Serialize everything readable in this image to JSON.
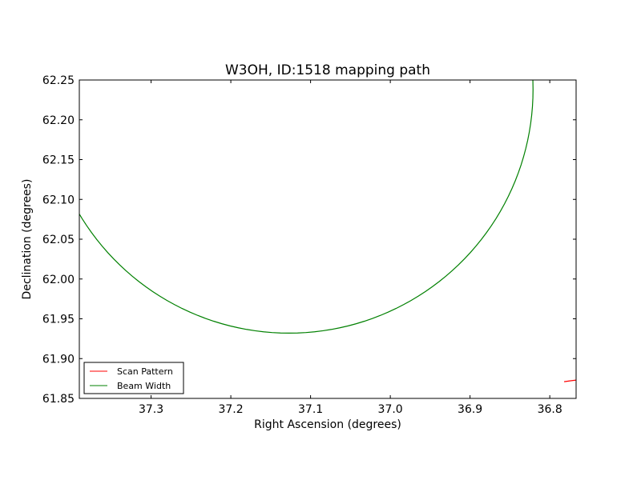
{
  "chart_data": {
    "type": "line",
    "title": "W3OH, ID:1518 mapping path",
    "xlabel": "Right Ascension (degrees)",
    "ylabel": "Declination (degrees)",
    "xlim": [
      37.39,
      36.767
    ],
    "ylim": [
      61.85,
      62.25
    ],
    "x_inverted": true,
    "xticks": [
      "37.3",
      "37.2",
      "37.1",
      "37.0",
      "36.9",
      "36.8"
    ],
    "xtick_values": [
      37.3,
      37.2,
      37.1,
      37.0,
      36.9,
      36.8
    ],
    "yticks": [
      "61.85",
      "61.90",
      "61.95",
      "62.00",
      "62.05",
      "62.10",
      "62.15",
      "62.20",
      "62.25"
    ],
    "ytick_values": [
      61.85,
      61.9,
      61.95,
      62.0,
      62.05,
      62.1,
      62.15,
      62.2,
      62.25
    ],
    "grid": false,
    "legend_position": "bottom-left",
    "series": [
      {
        "name": "Scan Pattern",
        "color": "#ff0000",
        "x": [
          36.782,
          36.775,
          36.767
        ],
        "y": [
          61.871,
          61.872,
          61.873
        ]
      },
      {
        "name": "Beam Width",
        "color": "#008000",
        "circle": {
          "center_ra": 37.127,
          "center_dec": 62.238,
          "radius_deg": 0.306
        }
      }
    ]
  }
}
